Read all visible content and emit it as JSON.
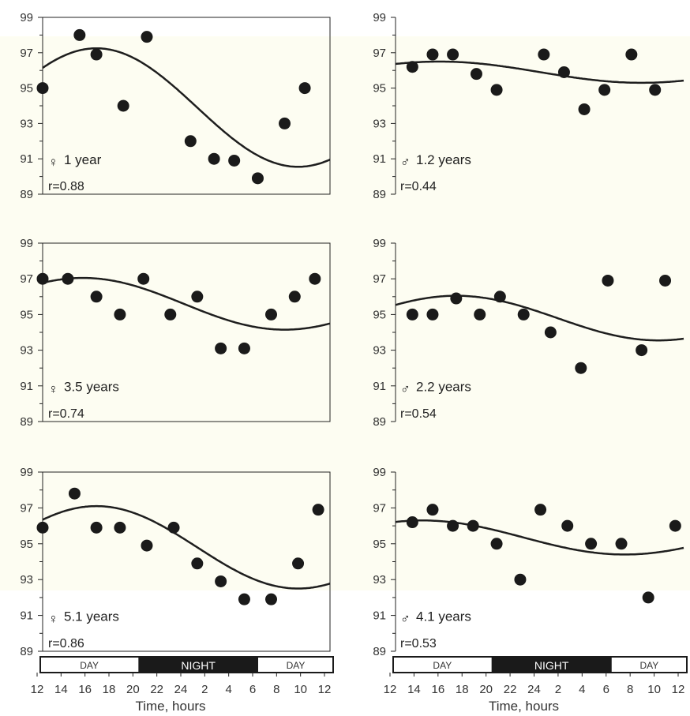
{
  "chart_data": [
    {
      "type": "scatter",
      "panel": "top-left",
      "sex_symbol": "♀",
      "label": "1 year",
      "r": "r=0.88",
      "ylim": [
        89,
        99
      ],
      "yticks": [
        89,
        91,
        93,
        95,
        97,
        99
      ],
      "points": [
        [
          0,
          95
        ],
        [
          1.1,
          98
        ],
        [
          1.6,
          96.9
        ],
        [
          2.4,
          94
        ],
        [
          3.1,
          97.9
        ],
        [
          4.4,
          92
        ],
        [
          5.1,
          91
        ],
        [
          5.7,
          90.9
        ],
        [
          6.4,
          89.9
        ],
        [
          7.2,
          93
        ],
        [
          7.8,
          95
        ]
      ],
      "fit": {
        "mean": 93.9,
        "amp": 3.35,
        "peak_x": 1.6
      }
    },
    {
      "type": "scatter",
      "panel": "top-right",
      "sex_symbol": "♂",
      "label": "1.2 years",
      "r": "r=0.44",
      "ylim": [
        89,
        99
      ],
      "yticks": [
        89,
        91,
        93,
        95,
        97,
        99
      ],
      "points": [
        [
          0.5,
          96.2
        ],
        [
          1.1,
          96.9
        ],
        [
          1.7,
          96.9
        ],
        [
          2.4,
          95.8
        ],
        [
          3.0,
          94.9
        ],
        [
          4.4,
          96.9
        ],
        [
          5.0,
          95.9
        ],
        [
          5.6,
          93.8
        ],
        [
          6.2,
          94.9
        ],
        [
          7.0,
          96.9
        ],
        [
          7.7,
          94.9
        ]
      ],
      "fit": {
        "mean": 95.9,
        "amp": 0.6,
        "peak_x": 1.3
      }
    },
    {
      "type": "scatter",
      "panel": "middle-left",
      "sex_symbol": "♀",
      "label": "3.5 years",
      "r": "r=0.74",
      "ylim": [
        89,
        99
      ],
      "yticks": [
        89,
        91,
        93,
        95,
        97,
        99
      ],
      "points": [
        [
          0,
          97
        ],
        [
          0.75,
          97
        ],
        [
          1.6,
          96
        ],
        [
          2.3,
          95
        ],
        [
          3.0,
          97
        ],
        [
          3.8,
          95
        ],
        [
          4.6,
          96
        ],
        [
          5.3,
          93.1
        ],
        [
          6.0,
          93.1
        ],
        [
          6.8,
          95
        ],
        [
          7.5,
          96
        ],
        [
          8.1,
          97
        ]
      ],
      "fit": {
        "mean": 95.6,
        "amp": 1.45,
        "peak_x": 1.2
      }
    },
    {
      "type": "scatter",
      "panel": "middle-right",
      "sex_symbol": "♂",
      "label": "2.2 years",
      "r": "r=0.54",
      "ylim": [
        89,
        99
      ],
      "yticks": [
        89,
        91,
        93,
        95,
        97,
        99
      ],
      "points": [
        [
          0.5,
          95
        ],
        [
          1.1,
          95
        ],
        [
          1.8,
          95.9
        ],
        [
          2.5,
          95
        ],
        [
          3.1,
          96
        ],
        [
          3.8,
          95
        ],
        [
          4.6,
          94
        ],
        [
          5.5,
          92
        ],
        [
          6.3,
          96.9
        ],
        [
          7.3,
          93
        ],
        [
          8.0,
          96.9
        ]
      ],
      "fit": {
        "mean": 94.8,
        "amp": 1.25,
        "peak_x": 1.8
      }
    },
    {
      "type": "scatter",
      "panel": "bottom-left",
      "sex_symbol": "♀",
      "label": "5.1 years",
      "r": "r=0.86",
      "ylim": [
        89,
        99
      ],
      "yticks": [
        89,
        91,
        93,
        95,
        97,
        99
      ],
      "points": [
        [
          0,
          95.9
        ],
        [
          0.95,
          97.8
        ],
        [
          1.6,
          95.9
        ],
        [
          2.3,
          95.9
        ],
        [
          3.1,
          94.9
        ],
        [
          3.9,
          95.9
        ],
        [
          4.6,
          93.9
        ],
        [
          5.3,
          92.9
        ],
        [
          6.0,
          91.9
        ],
        [
          6.8,
          91.9
        ],
        [
          7.6,
          93.9
        ],
        [
          8.2,
          96.9
        ]
      ],
      "fit": {
        "mean": 94.8,
        "amp": 2.3,
        "peak_x": 1.6
      }
    },
    {
      "type": "scatter",
      "panel": "bottom-right",
      "sex_symbol": "♂",
      "label": "4.1 years",
      "r": "r=0.53",
      "ylim": [
        89,
        99
      ],
      "yticks": [
        89,
        91,
        93,
        95,
        97,
        99
      ],
      "points": [
        [
          0.5,
          96.2
        ],
        [
          1.1,
          96.9
        ],
        [
          1.7,
          96
        ],
        [
          2.3,
          96
        ],
        [
          3.0,
          95
        ],
        [
          3.7,
          93
        ],
        [
          4.3,
          96.9
        ],
        [
          5.1,
          96
        ],
        [
          5.8,
          95
        ],
        [
          6.7,
          95
        ],
        [
          7.5,
          92
        ],
        [
          8.3,
          96
        ]
      ],
      "fit": {
        "mean": 95.35,
        "amp": 0.95,
        "peak_x": 0.8
      }
    }
  ],
  "x_ticks": [
    "12",
    "14",
    "16",
    "18",
    "20",
    "22",
    "24",
    "2",
    "4",
    "6",
    "8",
    "10",
    "12"
  ],
  "xlabel": "Time, hours",
  "daynight_bar": {
    "day_left": "DAY",
    "night": "NIGHT",
    "day_right": "DAY",
    "night_start_tick": 4,
    "night_end_tick": 9
  }
}
